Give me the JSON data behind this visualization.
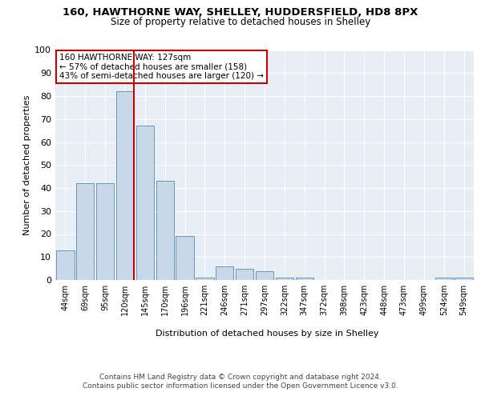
{
  "title1": "160, HAWTHORNE WAY, SHELLEY, HUDDERSFIELD, HD8 8PX",
  "title2": "Size of property relative to detached houses in Shelley",
  "xlabel": "Distribution of detached houses by size in Shelley",
  "ylabel": "Number of detached properties",
  "categories": [
    "44sqm",
    "69sqm",
    "95sqm",
    "120sqm",
    "145sqm",
    "170sqm",
    "196sqm",
    "221sqm",
    "246sqm",
    "271sqm",
    "297sqm",
    "322sqm",
    "347sqm",
    "372sqm",
    "398sqm",
    "423sqm",
    "448sqm",
    "473sqm",
    "499sqm",
    "524sqm",
    "549sqm"
  ],
  "values": [
    13,
    42,
    42,
    82,
    67,
    43,
    19,
    1,
    6,
    5,
    4,
    1,
    1,
    0,
    0,
    0,
    0,
    0,
    0,
    1,
    1
  ],
  "bar_color": "#c8d8e8",
  "bar_edge_color": "#5a8ab0",
  "vline_x": 3.45,
  "vline_color": "#cc0000",
  "annotation_text": "160 HAWTHORNE WAY: 127sqm\n← 57% of detached houses are smaller (158)\n43% of semi-detached houses are larger (120) →",
  "annotation_box_color": "white",
  "annotation_box_edge_color": "#cc0000",
  "ylim": [
    0,
    100
  ],
  "yticks": [
    0,
    10,
    20,
    30,
    40,
    50,
    60,
    70,
    80,
    90,
    100
  ],
  "background_color": "#e8eef5",
  "grid_color": "white",
  "footer_text": "Contains HM Land Registry data © Crown copyright and database right 2024.\nContains public sector information licensed under the Open Government Licence v3.0."
}
